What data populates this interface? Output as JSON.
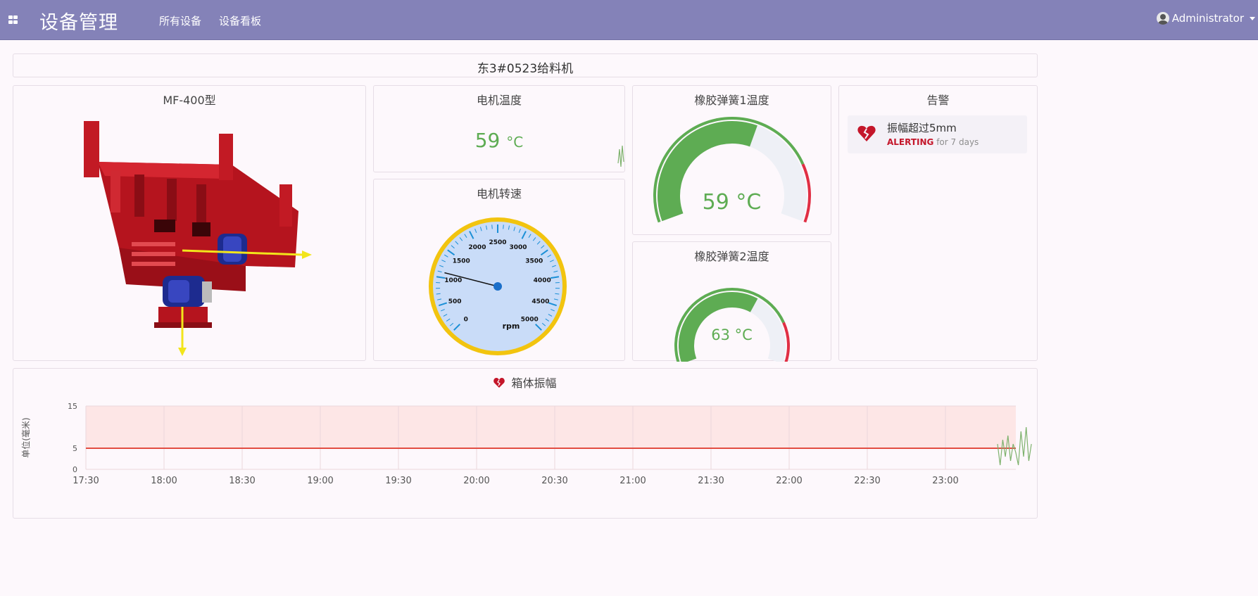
{
  "header": {
    "app_title": "设备管理",
    "nav": [
      "所有设备",
      "设备看板"
    ],
    "user": "Administrator"
  },
  "device_title": "东3#0523给料机",
  "model_panel": {
    "title": "MF-400型"
  },
  "motor_temp": {
    "title": "电机温度",
    "value": "59",
    "unit": "°C"
  },
  "motor_speed": {
    "title": "电机转速",
    "unit_label": "rpm",
    "ticks": [
      "0",
      "500",
      "1000",
      "1500",
      "2000",
      "2500",
      "3000",
      "3500",
      "4000",
      "4500",
      "5000"
    ],
    "value": 1100,
    "max": 5000
  },
  "spring1": {
    "title": "橡胶弹簧1温度",
    "value": 59,
    "display": "59 °C",
    "max": 100,
    "threshold": 80
  },
  "spring2": {
    "title": "橡胶弹簧2温度",
    "display": "63 °C",
    "value": 63,
    "max": 100,
    "threshold": 80
  },
  "alerts": {
    "title": "告警",
    "items": [
      {
        "name": "振幅超过5mm",
        "state": "ALERTING",
        "duration": "for 7 days"
      }
    ]
  },
  "chart_data": {
    "type": "line",
    "title": "箱体振幅",
    "ylabel": "单位(毫米)",
    "y_ticks": [
      "0",
      "5",
      "15"
    ],
    "ylim": [
      0,
      15
    ],
    "x_ticks": [
      "17:30",
      "18:00",
      "18:30",
      "19:00",
      "19:30",
      "20:00",
      "20:30",
      "21:00",
      "21:30",
      "22:00",
      "22:30",
      "23:00"
    ],
    "threshold": 5,
    "colors": {
      "threshold": "#e24d42",
      "series": "#7eb26d",
      "alert_fill": "#fde6e6"
    },
    "series": [
      {
        "x": [
          "23:20",
          "23:21",
          "23:22",
          "23:23",
          "23:24",
          "23:25",
          "23:26",
          "23:27",
          "23:28",
          "23:29",
          "23:30",
          "23:31",
          "23:32",
          "23:33"
        ],
        "values": [
          6,
          1,
          7,
          3,
          8,
          2,
          6,
          4,
          1,
          9,
          3,
          10,
          2,
          6
        ]
      }
    ]
  }
}
